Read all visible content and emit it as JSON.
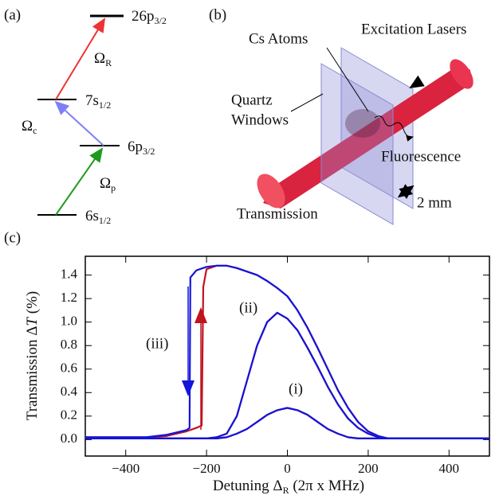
{
  "panel_a": {
    "label": "(a)",
    "levels": [
      {
        "name": "26p",
        "sub": "3/2"
      },
      {
        "name": "7s",
        "sub": "1/2"
      },
      {
        "name": "6p",
        "sub": "3/2"
      },
      {
        "name": "6s",
        "sub": "1/2"
      }
    ],
    "rabi": [
      {
        "name": "Ω",
        "sub": "R"
      },
      {
        "name": "Ω",
        "sub": "c"
      },
      {
        "name": "Ω",
        "sub": "p"
      }
    ]
  },
  "panel_b": {
    "label": "(b)",
    "atoms": "Cs Atoms",
    "lasers": "Excitation Lasers",
    "windows": [
      "Quartz",
      "Windows"
    ],
    "fluorescence": "Fluorescence",
    "transmission": "Transmission",
    "scale": "2 mm"
  },
  "chart_data": {
    "type": "line",
    "panel_label": "(c)",
    "xlabel": [
      "Detuning Δ",
      "R",
      " (2π x MHz)"
    ],
    "ylabel": [
      "Transmission Δ",
      "T",
      " (%)"
    ],
    "xlim": [
      -500,
      500
    ],
    "ylim": [
      -0.14,
      1.56
    ],
    "xticks": [
      {
        "value": -400,
        "label": "−400"
      },
      {
        "value": -200,
        "label": "−200"
      },
      0,
      200,
      400
    ],
    "yticks": [
      {
        "value": 0,
        "label": "0.0"
      },
      0.2,
      0.4,
      0.6,
      0.8,
      {
        "value": 1,
        "label": "1.0"
      },
      1.2,
      1.4
    ],
    "annotations": [
      "(i)",
      "(ii)",
      "(iii)"
    ],
    "series": [
      {
        "color": "#c0141e",
        "x": [
          -500,
          -400,
          -300,
          -250,
          -200,
          -175,
          -150,
          -125,
          -100,
          -75,
          -50,
          -25,
          0,
          25,
          50,
          75,
          100,
          125,
          150,
          175,
          200,
          225,
          250,
          300,
          400,
          500
        ],
        "values": [
          0.01,
          0.01,
          0.01,
          0.01,
          0.01,
          0.01,
          0.02,
          0.05,
          0.09,
          0.15,
          0.21,
          0.25,
          0.27,
          0.25,
          0.21,
          0.15,
          0.09,
          0.05,
          0.02,
          0.01,
          0.01,
          0.01,
          0.01,
          0.01,
          0.01,
          0.01
        ]
      },
      {
        "color": "#c0141e",
        "x": [
          -500,
          -400,
          -300,
          -250,
          -200,
          -175,
          -150,
          -125,
          -100,
          -75,
          -50,
          -25,
          0,
          25,
          50,
          75,
          100,
          125,
          150,
          175,
          200,
          225,
          250,
          300,
          400,
          500
        ],
        "values": [
          0.01,
          0.01,
          0.01,
          0.01,
          0.01,
          0.02,
          0.05,
          0.2,
          0.5,
          0.8,
          1.0,
          1.08,
          1.03,
          0.93,
          0.78,
          0.62,
          0.45,
          0.3,
          0.18,
          0.1,
          0.05,
          0.02,
          0.01,
          0.01,
          0.01,
          0.01
        ]
      },
      {
        "color": "#c0141e",
        "x": [
          -500,
          -450,
          -400,
          -350,
          -300,
          -275,
          -250,
          -225,
          -212,
          -208,
          -200,
          -175,
          -150,
          -125,
          -100,
          -75,
          -50,
          -25,
          0,
          25,
          50,
          75,
          100,
          125,
          150,
          175,
          200,
          225,
          250,
          300,
          400,
          500
        ],
        "values": [
          0.02,
          0.02,
          0.02,
          0.02,
          0.03,
          0.05,
          0.07,
          0.1,
          0.12,
          1.3,
          1.45,
          1.48,
          1.48,
          1.46,
          1.43,
          1.4,
          1.35,
          1.29,
          1.22,
          1.1,
          0.95,
          0.78,
          0.6,
          0.42,
          0.27,
          0.15,
          0.07,
          0.03,
          0.01,
          0.01,
          0.01,
          0.01
        ]
      },
      {
        "color": "#1414dc",
        "x": [
          -500,
          -400,
          -300,
          -250,
          -200,
          -175,
          -150,
          -125,
          -100,
          -75,
          -50,
          -25,
          0,
          25,
          50,
          75,
          100,
          125,
          150,
          175,
          200,
          225,
          250,
          300,
          400,
          500
        ],
        "values": [
          0.01,
          0.01,
          0.01,
          0.01,
          0.01,
          0.01,
          0.02,
          0.05,
          0.09,
          0.15,
          0.21,
          0.25,
          0.27,
          0.25,
          0.21,
          0.15,
          0.09,
          0.05,
          0.02,
          0.01,
          0.01,
          0.01,
          0.01,
          0.01,
          0.01,
          0.01
        ]
      },
      {
        "color": "#1414dc",
        "x": [
          -500,
          -400,
          -300,
          -250,
          -200,
          -175,
          -150,
          -125,
          -100,
          -75,
          -50,
          -25,
          0,
          25,
          50,
          75,
          100,
          125,
          150,
          175,
          200,
          225,
          250,
          300,
          400,
          500
        ],
        "values": [
          0.01,
          0.01,
          0.01,
          0.01,
          0.01,
          0.02,
          0.05,
          0.2,
          0.5,
          0.8,
          1.0,
          1.08,
          1.03,
          0.93,
          0.78,
          0.62,
          0.45,
          0.3,
          0.18,
          0.1,
          0.05,
          0.02,
          0.01,
          0.01,
          0.01,
          0.01
        ]
      },
      {
        "color": "#1414dc",
        "x": [
          -500,
          -450,
          -400,
          -350,
          -300,
          -275,
          -250,
          -242,
          -240,
          -225,
          -200,
          -175,
          -150,
          -125,
          -100,
          -75,
          -50,
          -25,
          0,
          25,
          50,
          75,
          100,
          125,
          150,
          175,
          200,
          225,
          250,
          300,
          400,
          500
        ],
        "values": [
          0.02,
          0.02,
          0.02,
          0.02,
          0.04,
          0.06,
          0.08,
          0.1,
          1.38,
          1.44,
          1.47,
          1.48,
          1.48,
          1.46,
          1.43,
          1.4,
          1.35,
          1.29,
          1.22,
          1.1,
          0.95,
          0.78,
          0.6,
          0.42,
          0.27,
          0.15,
          0.07,
          0.03,
          0.01,
          0.01,
          0.01,
          0.01
        ]
      }
    ]
  }
}
